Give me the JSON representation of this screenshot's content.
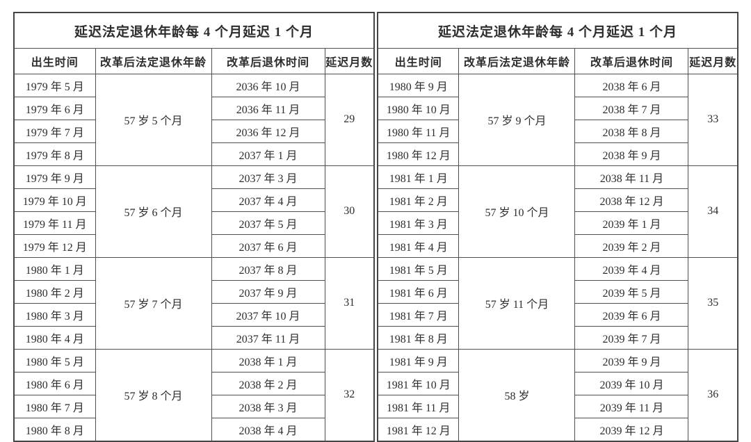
{
  "colors": {
    "background": "#ffffff",
    "border": "#4f4f4f",
    "outer_border": "#454545",
    "text": "#2d2d2d"
  },
  "tables": [
    {
      "title": "延迟法定退休年龄每 4 个月延迟 1 个月",
      "headers": [
        "出生时间",
        "改革后法定退休年龄",
        "改革后退休时间",
        "延迟月数"
      ],
      "groups": [
        {
          "births": [
            "1979 年 5 月",
            "1979 年 6 月",
            "1979 年 7 月",
            "1979 年 8 月"
          ],
          "age": "57 岁 5 个月",
          "retires": [
            "2036 年 10 月",
            "2036 年 11 月",
            "2036 年 12 月",
            "2037 年 1 月"
          ],
          "delay": "29"
        },
        {
          "births": [
            "1979 年 9 月",
            "1979 年 10 月",
            "1979 年 11 月",
            "1979 年 12 月"
          ],
          "age": "57 岁 6 个月",
          "retires": [
            "2037 年 3 月",
            "2037 年 4 月",
            "2037 年 5 月",
            "2037 年 6 月"
          ],
          "delay": "30"
        },
        {
          "births": [
            "1980 年 1 月",
            "1980 年 2 月",
            "1980 年 3 月",
            "1980 年 4 月"
          ],
          "age": "57 岁 7 个月",
          "retires": [
            "2037 年 8 月",
            "2037 年 9 月",
            "2037 年 10 月",
            "2037 年 11 月"
          ],
          "delay": "31"
        },
        {
          "births": [
            "1980 年 5 月",
            "1980 年 6 月",
            "1980 年 7 月",
            "1980 年 8 月"
          ],
          "age": "57 岁 8 个月",
          "retires": [
            "2038 年 1 月",
            "2038 年 2 月",
            "2038 年 3 月",
            "2038 年 4 月"
          ],
          "delay": "32"
        }
      ]
    },
    {
      "title": "延迟法定退休年龄每 4 个月延迟 1 个月",
      "headers": [
        "出生时间",
        "改革后法定退休年龄",
        "改革后退休时间",
        "延迟月数"
      ],
      "groups": [
        {
          "births": [
            "1980 年 9 月",
            "1980 年 10 月",
            "1980 年 11 月",
            "1980 年 12 月"
          ],
          "age": "57 岁 9 个月",
          "retires": [
            "2038 年 6 月",
            "2038 年 7 月",
            "2038 年 8 月",
            "2038 年 9 月"
          ],
          "delay": "33"
        },
        {
          "births": [
            "1981 年 1 月",
            "1981 年 2 月",
            "1981 年 3 月",
            "1981 年 4 月"
          ],
          "age": "57 岁 10 个月",
          "retires": [
            "2038 年 11 月",
            "2038 年 12 月",
            "2039 年 1 月",
            "2039 年 2 月"
          ],
          "delay": "34"
        },
        {
          "births": [
            "1981 年 5 月",
            "1981 年 6 月",
            "1981 年 7 月",
            "1981 年 8 月"
          ],
          "age": "57 岁 11 个月",
          "retires": [
            "2039 年 4 月",
            "2039 年 5 月",
            "2039 年 6 月",
            "2039 年 7 月"
          ],
          "delay": "35"
        },
        {
          "births": [
            "1981 年 9 月",
            "1981 年 10 月",
            "1981 年 11 月",
            "1981 年 12 月"
          ],
          "age": "58 岁",
          "retires": [
            "2039 年 9 月",
            "2039 年 10 月",
            "2039 年 11 月",
            "2039 年 12 月"
          ],
          "delay": "36"
        }
      ]
    }
  ]
}
